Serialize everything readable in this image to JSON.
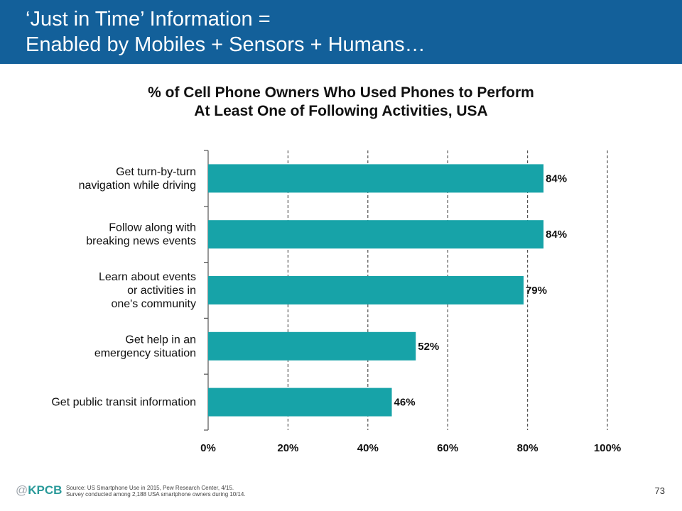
{
  "header": {
    "title_line1": "‘Just in Time’ Information =",
    "title_line2": "Enabled by Mobiles + Sensors + Humans…"
  },
  "chart_data": {
    "type": "bar",
    "orientation": "horizontal",
    "title_line1": "% of Cell Phone Owners Who Used Phones to Perform",
    "title_line2": "At Least One of Following Activities, USA",
    "categories": [
      [
        "Get turn-by-turn",
        "navigation while driving"
      ],
      [
        "Follow along with",
        "breaking news events"
      ],
      [
        "Learn about events",
        "or activities in",
        "one's community"
      ],
      [
        "Get help in an",
        "emergency situation"
      ],
      [
        "Get public transit information"
      ]
    ],
    "values": [
      84,
      84,
      79,
      52,
      46
    ],
    "value_labels": [
      "84%",
      "84%",
      "79%",
      "52%",
      "46%"
    ],
    "xlim": [
      0,
      100
    ],
    "x_ticks": [
      0,
      20,
      40,
      60,
      80,
      100
    ],
    "x_tick_labels": [
      "0%",
      "20%",
      "40%",
      "60%",
      "80%",
      "100%"
    ],
    "bar_color": "#17a3a8",
    "grid": "dashed-vertical"
  },
  "footer": {
    "logo_at": "@",
    "logo_text": "KPCB",
    "source_line1": "Source: US Smartphone Use in 2015, Pew Research Center, 4/15.",
    "source_line2": "Survey conducted among 2,188 USA smartphone owners during 10/14.",
    "page_number": "73"
  },
  "colors": {
    "header_bg": "#13609a",
    "bar": "#17a3a8",
    "logo": "#2a9a9a"
  }
}
